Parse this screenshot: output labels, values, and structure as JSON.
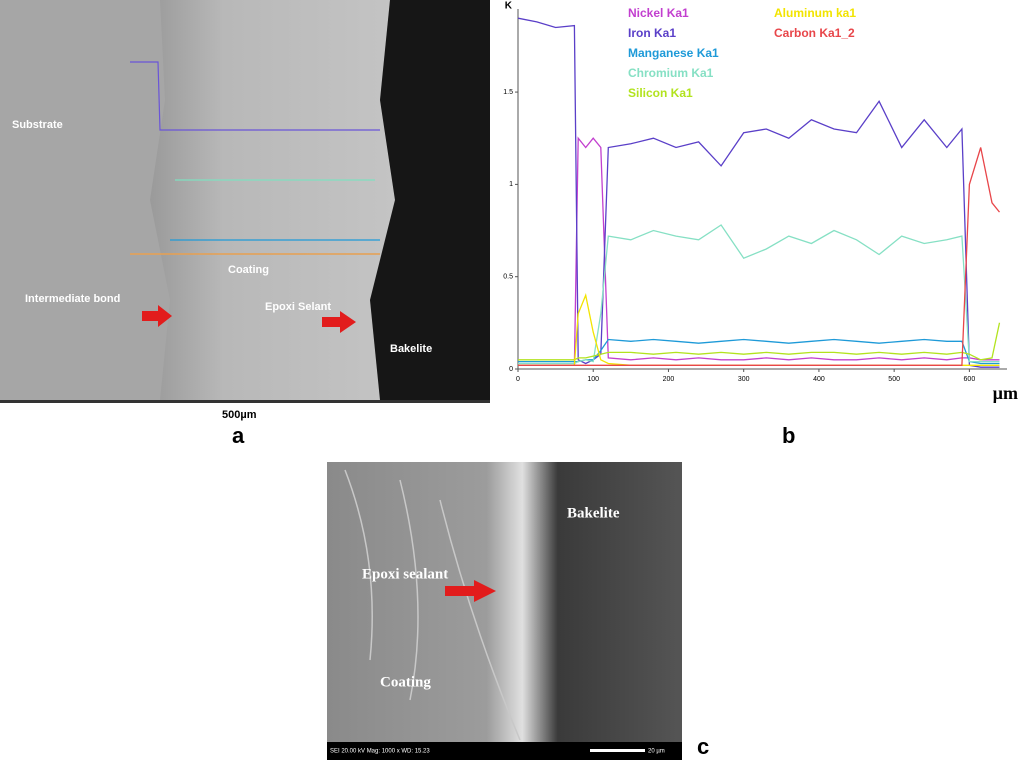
{
  "chart_data": {
    "type": "line",
    "y_label": "K",
    "x_label": "µm",
    "x": [
      0,
      25,
      50,
      75,
      80,
      90,
      100,
      110,
      120,
      150,
      180,
      210,
      240,
      270,
      300,
      330,
      360,
      390,
      420,
      450,
      480,
      510,
      540,
      570,
      590,
      600,
      615,
      630,
      640
    ],
    "xlim": [
      0,
      650
    ],
    "xticks": [
      0,
      100,
      200,
      300,
      400,
      500,
      600
    ],
    "ylim": [
      0,
      1.95
    ],
    "yticks": [
      0,
      0.5,
      1,
      1.5
    ],
    "series": [
      {
        "name": "Nickel Ka1",
        "color": "#c23fcf",
        "values": [
          0.02,
          0.02,
          0.02,
          0.02,
          1.25,
          1.2,
          1.25,
          1.2,
          0.06,
          0.05,
          0.06,
          0.05,
          0.06,
          0.05,
          0.05,
          0.06,
          0.05,
          0.06,
          0.05,
          0.05,
          0.06,
          0.05,
          0.06,
          0.05,
          0.06,
          0.06,
          0.05,
          0.05,
          0.05
        ]
      },
      {
        "name": "Iron Ka1",
        "color": "#5a3fc8",
        "values": [
          1.9,
          1.88,
          1.85,
          1.86,
          0.05,
          0.03,
          0.05,
          0.08,
          1.2,
          1.22,
          1.25,
          1.2,
          1.23,
          1.1,
          1.28,
          1.3,
          1.25,
          1.35,
          1.3,
          1.28,
          1.45,
          1.2,
          1.35,
          1.2,
          1.3,
          0.02,
          0.01,
          0.01,
          0.01
        ]
      },
      {
        "name": "Manganese Ka1",
        "color": "#1e9ad8",
        "values": [
          0.04,
          0.04,
          0.04,
          0.04,
          0.04,
          0.05,
          0.05,
          0.1,
          0.16,
          0.15,
          0.16,
          0.15,
          0.14,
          0.15,
          0.16,
          0.15,
          0.14,
          0.15,
          0.16,
          0.15,
          0.14,
          0.15,
          0.16,
          0.15,
          0.15,
          0.04,
          0.03,
          0.03,
          0.03
        ]
      },
      {
        "name": "Chromium Ka1",
        "color": "#86e0c4",
        "values": [
          0.03,
          0.03,
          0.03,
          0.03,
          0.04,
          0.05,
          0.04,
          0.3,
          0.72,
          0.7,
          0.75,
          0.72,
          0.7,
          0.78,
          0.6,
          0.65,
          0.72,
          0.68,
          0.75,
          0.7,
          0.62,
          0.72,
          0.68,
          0.7,
          0.72,
          0.04,
          0.04,
          0.04,
          0.04
        ]
      },
      {
        "name": "Silicon Ka1",
        "color": "#b2e31e",
        "values": [
          0.05,
          0.05,
          0.05,
          0.05,
          0.06,
          0.06,
          0.07,
          0.08,
          0.09,
          0.09,
          0.08,
          0.09,
          0.08,
          0.09,
          0.08,
          0.09,
          0.08,
          0.09,
          0.09,
          0.08,
          0.09,
          0.08,
          0.09,
          0.08,
          0.09,
          0.08,
          0.05,
          0.06,
          0.25
        ]
      },
      {
        "name": "Aluminum ka1",
        "color": "#f2e400",
        "values": [
          0.02,
          0.02,
          0.02,
          0.02,
          0.3,
          0.4,
          0.2,
          0.05,
          0.03,
          0.02,
          0.02,
          0.02,
          0.02,
          0.02,
          0.02,
          0.02,
          0.02,
          0.02,
          0.02,
          0.02,
          0.02,
          0.02,
          0.02,
          0.02,
          0.02,
          0.02,
          0.02,
          0.02,
          0.02
        ]
      },
      {
        "name": "Carbon Ka1_2",
        "color": "#e8464a",
        "values": [
          0.02,
          0.02,
          0.02,
          0.02,
          0.02,
          0.02,
          0.02,
          0.02,
          0.02,
          0.02,
          0.02,
          0.02,
          0.02,
          0.02,
          0.02,
          0.02,
          0.02,
          0.02,
          0.02,
          0.02,
          0.02,
          0.02,
          0.02,
          0.02,
          0.02,
          1.0,
          1.2,
          0.9,
          0.85
        ]
      }
    ]
  },
  "panels": {
    "a": {
      "letter": "a",
      "labels": [
        "Substrate",
        "Coating",
        "Intermediate bond",
        "Epoxi Selant",
        "Bakelite"
      ],
      "scale": "500µm"
    },
    "b": {
      "letter": "b"
    },
    "c": {
      "letter": "c",
      "labels": [
        "Bakelite",
        "Epoxi sealant",
        "Coating"
      ],
      "footer": "SEI 20.00 kV  Mag: 1000 x  WD: 15.23",
      "scale": "20 µm"
    }
  }
}
